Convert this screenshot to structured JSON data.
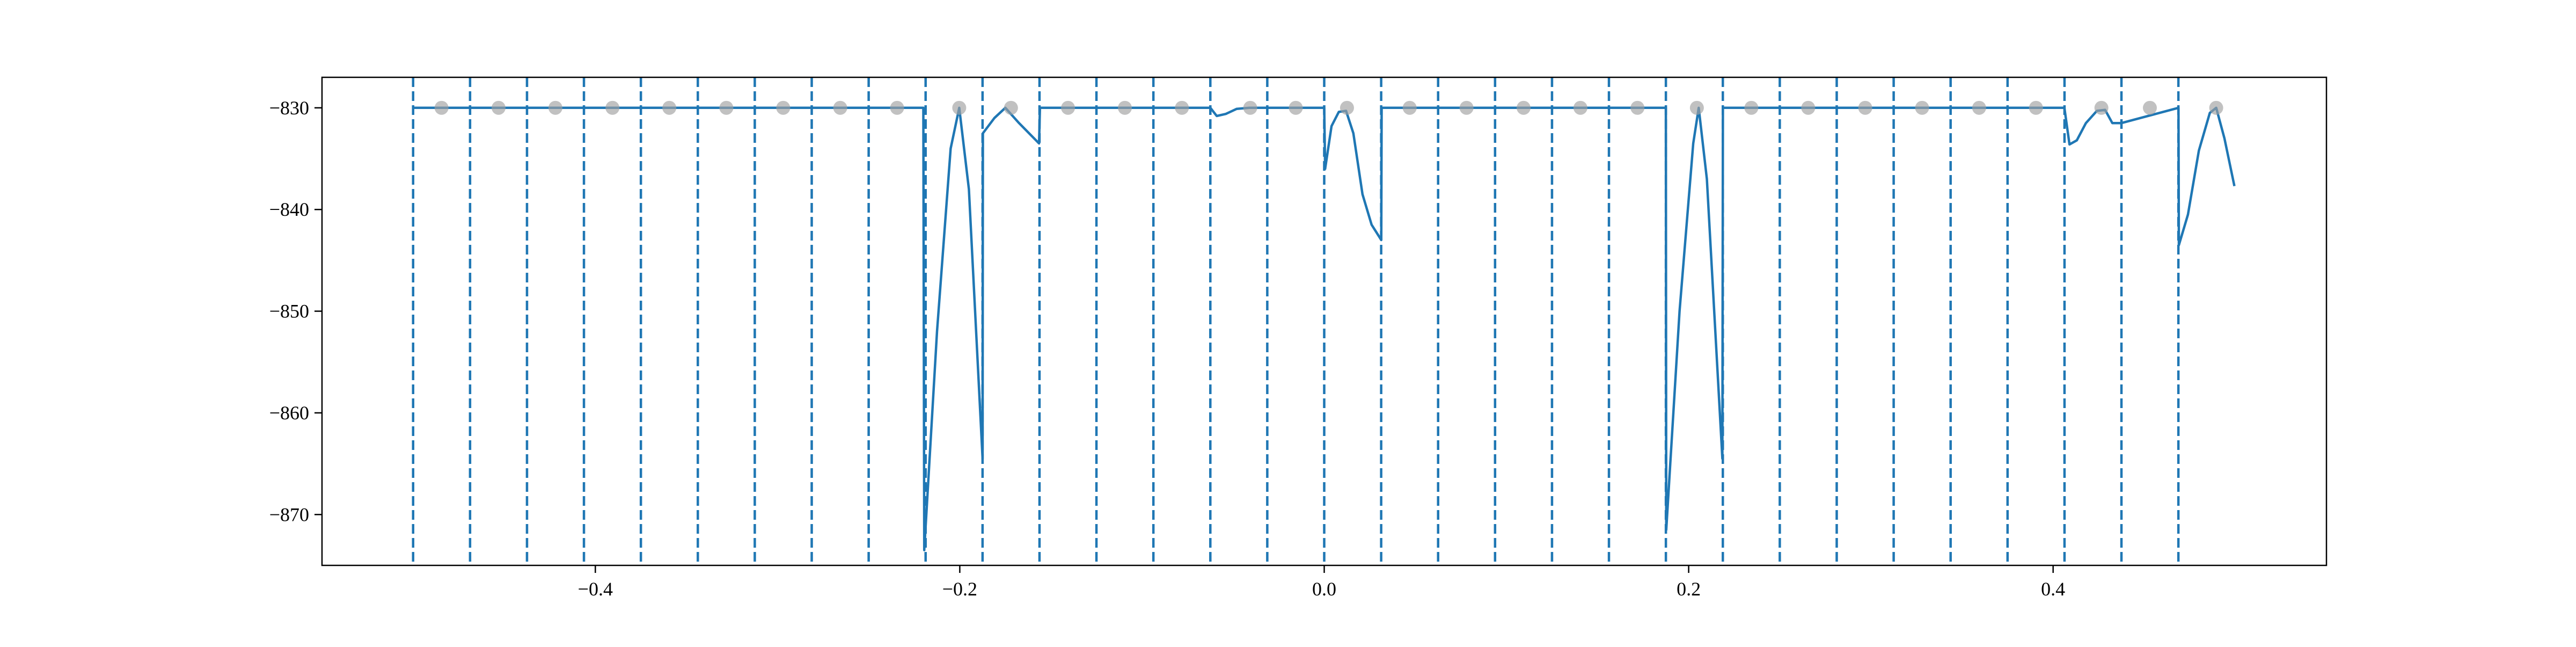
{
  "chart_data": {
    "type": "line",
    "title": "",
    "xlabel": "",
    "ylabel": "",
    "xlim": [
      -0.55,
      0.55
    ],
    "ylim": [
      -875,
      -827
    ],
    "xticks": [
      -0.4,
      -0.2,
      0.0,
      0.2,
      0.4
    ],
    "xtick_labels": [
      "−0.4",
      "−0.2",
      "0.0",
      "0.2",
      "0.4"
    ],
    "yticks": [
      -830,
      -840,
      -850,
      -860,
      -870
    ],
    "ytick_labels": [
      "−830",
      "−840",
      "−850",
      "−860",
      "−870"
    ],
    "grid": false,
    "legend": "none",
    "vertical_lines": {
      "style": "dashed",
      "color": "#1f77b4",
      "x": [
        -0.5,
        -0.46875,
        -0.4375,
        -0.40625,
        -0.375,
        -0.34375,
        -0.3125,
        -0.28125,
        -0.25,
        -0.21875,
        -0.1875,
        -0.15625,
        -0.125,
        -0.09375,
        -0.0625,
        -0.03125,
        0.0,
        0.03125,
        0.0625,
        0.09375,
        0.125,
        0.15625,
        0.1875,
        0.21875,
        0.25,
        0.28125,
        0.3125,
        0.34375,
        0.375,
        0.40625,
        0.4375,
        0.46875
      ]
    },
    "series": [
      {
        "kind": "line",
        "color": "#1f77b4",
        "x": [
          -0.5,
          -0.22,
          -0.2195,
          -0.2125,
          -0.205,
          -0.2003,
          -0.195,
          -0.1875,
          -0.1873,
          -0.181,
          -0.175,
          -0.1675,
          -0.1565,
          -0.156,
          -0.0625,
          -0.059,
          -0.054,
          -0.048,
          -0.041,
          -0.035,
          -0.031,
          0.0,
          0.0005,
          0.004,
          0.008,
          0.012,
          0.016,
          0.021,
          0.026,
          0.0313,
          0.0315,
          0.1875,
          0.1877,
          0.195,
          0.2025,
          0.2055,
          0.21,
          0.2185,
          0.2188,
          0.4062,
          0.409,
          0.413,
          0.418,
          0.424,
          0.4285,
          0.4325,
          0.4375,
          0.4688,
          0.469,
          0.474,
          0.48,
          0.486,
          0.4895,
          0.494,
          0.4995
        ],
        "y": [
          -830,
          -830,
          -873.5,
          -852,
          -834,
          -830,
          -838,
          -864.5,
          -832.5,
          -831,
          -830,
          -831.5,
          -833.5,
          -830,
          -830,
          -830.8,
          -830.6,
          -830.1,
          -830,
          -830,
          -830,
          -830,
          -836,
          -831.8,
          -830.4,
          -830.3,
          -832.5,
          -838.5,
          -841.5,
          -843,
          -830,
          -830,
          -871.5,
          -850,
          -833.5,
          -830,
          -837,
          -864.5,
          -830,
          -830,
          -833.6,
          -833.2,
          -831.5,
          -830.3,
          -830.2,
          -831.5,
          -831.5,
          -830,
          -843.5,
          -840.5,
          -834.2,
          -830.5,
          -830,
          -833,
          -837.7
        ]
      },
      {
        "kind": "scatter",
        "color": "#a0a0a0",
        "x": [
          -0.4844,
          -0.4531,
          -0.4219,
          -0.3906,
          -0.3594,
          -0.3281,
          -0.2969,
          -0.2656,
          -0.2344,
          -0.2003,
          -0.1719,
          -0.1406,
          -0.1094,
          -0.0781,
          -0.0406,
          -0.0156,
          0.0125,
          0.0469,
          0.0781,
          0.1094,
          0.1406,
          0.1719,
          0.2045,
          0.2344,
          0.2656,
          0.2969,
          0.3281,
          0.3594,
          0.3906,
          0.4265,
          0.4531,
          0.4895
        ],
        "y": [
          -830,
          -830,
          -830,
          -830,
          -830,
          -830,
          -830,
          -830,
          -830,
          -830,
          -830,
          -830,
          -830,
          -830,
          -830,
          -830,
          -830,
          -830,
          -830,
          -830,
          -830,
          -830,
          -830,
          -830,
          -830,
          -830,
          -830,
          -830,
          -830,
          -830,
          -830,
          -830
        ]
      }
    ]
  }
}
